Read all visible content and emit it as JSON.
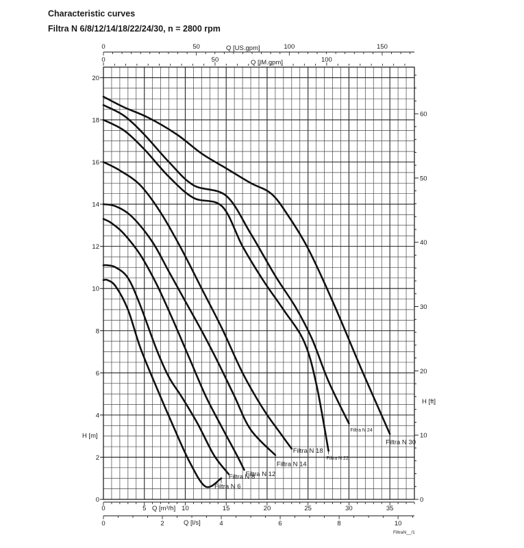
{
  "header": {
    "title": "Characteristic curves",
    "subtitle": "Filtra N 6/8/12/14/18/22/24/30, n = 2800 rpm"
  },
  "footer": {
    "figure_id": "FiltraN__/1"
  },
  "chart_data": {
    "type": "line",
    "title": "Characteristic curves",
    "subtitle": "Filtra N 6/8/12/14/18/22/24/30, n = 2800 rpm",
    "xlabel": "Q [m³/h]",
    "ylabel": "H [m]",
    "xlim": [
      0,
      38
    ],
    "ylim": [
      0,
      20.5
    ],
    "grid": true,
    "x_ticks": [
      "0",
      "5",
      "10",
      "15",
      "20",
      "25",
      "30",
      "35"
    ],
    "y_ticks": [
      "0",
      "2",
      "4",
      "6",
      "8",
      "10",
      "12",
      "14",
      "16",
      "18",
      "20"
    ],
    "secondary_axes": {
      "right": {
        "label": "H [ft]",
        "ticks": [
          "0",
          "10",
          "20",
          "30",
          "40",
          "50",
          "60"
        ]
      },
      "top_us": {
        "label": "Q [US.gpm]",
        "ticks": [
          "0",
          "50",
          "100",
          "150"
        ]
      },
      "top_im": {
        "label": "Q [IM.gpm]",
        "ticks": [
          "0",
          "50",
          "100"
        ]
      },
      "bottom_ls": {
        "label": "Q [l/s]",
        "ticks": [
          "0",
          "2",
          "4",
          "6",
          "8",
          "10"
        ]
      }
    },
    "series": [
      {
        "name": "Filtra N 6",
        "x": [
          0,
          0.5,
          1.5,
          3,
          4.5,
          6.5,
          8.5,
          10.5,
          12.5,
          14.4
        ],
        "y": [
          10.4,
          10.4,
          10.1,
          9,
          7.2,
          5.3,
          3.5,
          1.8,
          0.6,
          1.0
        ]
      },
      {
        "name": "Filtra N 8",
        "x": [
          0,
          0.5,
          1.5,
          3,
          4.5,
          6.5,
          8,
          9.5,
          11.5,
          13.5,
          15.3
        ],
        "y": [
          11.1,
          11.1,
          11.0,
          10.5,
          9.2,
          7.1,
          5.8,
          4.9,
          3.6,
          2.1,
          1.2
        ]
      },
      {
        "name": "Filtra N 12",
        "x": [
          0,
          1,
          2.5,
          4.5,
          6.5,
          8.5,
          10.5,
          12.5,
          14.5,
          16.3,
          17.2
        ],
        "y": [
          13.3,
          13.1,
          12.6,
          11.6,
          10.2,
          8.5,
          6.7,
          4.9,
          3.4,
          2.1,
          1.4
        ]
      },
      {
        "name": "Filtra N 14",
        "x": [
          0,
          1.5,
          3.5,
          6,
          8,
          10,
          12,
          14,
          16,
          18,
          21
        ],
        "y": [
          14.0,
          13.9,
          13.4,
          12.2,
          10.8,
          9.4,
          8.0,
          6.5,
          4.9,
          3.3,
          2.1
        ]
      },
      {
        "name": "Filtra N 18",
        "x": [
          0,
          2,
          4.5,
          7,
          9.5,
          12,
          14.5,
          17,
          19.5,
          21.5,
          23
        ],
        "y": [
          16.0,
          15.6,
          14.9,
          13.6,
          11.9,
          10.0,
          8.1,
          6.0,
          4.3,
          3.2,
          2.4
        ]
      },
      {
        "name": "Filtra N 22",
        "x": [
          0,
          2.5,
          5,
          8,
          11,
          14.5,
          17,
          19.5,
          22,
          24.5,
          26,
          27.5
        ],
        "y": [
          18.0,
          17.5,
          16.6,
          15.3,
          14.3,
          13.9,
          12.0,
          10.4,
          9.0,
          7.5,
          5.5,
          2.3
        ]
      },
      {
        "name": "Filtra N 24",
        "x": [
          0,
          2.5,
          5,
          8,
          11,
          15,
          18,
          21,
          23.5,
          25.5,
          27.5,
          30
        ],
        "y": [
          18.7,
          18.2,
          17.3,
          16.0,
          14.9,
          14.4,
          12.6,
          10.6,
          9.1,
          7.6,
          5.6,
          3.6
        ]
      },
      {
        "name": "Filtra N 30",
        "x": [
          0,
          2.5,
          5.5,
          9,
          12,
          15,
          18,
          20.5,
          22.5,
          25,
          28,
          31.5,
          35
        ],
        "y": [
          19.1,
          18.6,
          18.1,
          17.3,
          16.4,
          15.7,
          15.0,
          14.5,
          13.5,
          11.9,
          9.4,
          6.2,
          3.1
        ]
      }
    ]
  }
}
